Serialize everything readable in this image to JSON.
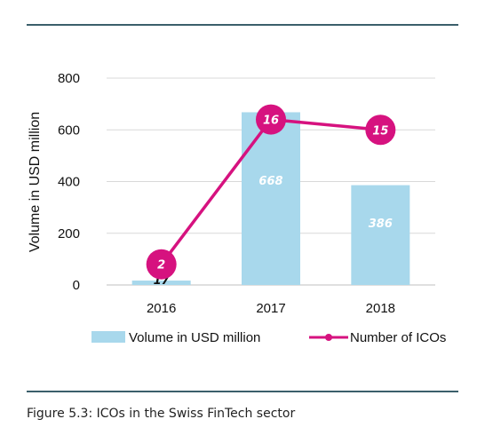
{
  "caption": "Figure 5.3: ICOs in the Swiss FinTech sector",
  "colors": {
    "bar": "#a8d8ec",
    "line": "#d6127f",
    "rule": "#3b5f6b",
    "grid": "#d9d9d9"
  },
  "chart_data": {
    "type": "bar",
    "categories": [
      "2016",
      "2017",
      "2018"
    ],
    "ylabel": "Volume in USD million",
    "ylim": [
      0,
      800
    ],
    "yticks": [
      "0",
      "200",
      "400",
      "600",
      "800"
    ],
    "grid": true,
    "legend_position": "bottom",
    "series": [
      {
        "name": "Volume in USD million",
        "type": "bar",
        "values": [
          17,
          668,
          386
        ],
        "labels": [
          "17",
          "668",
          "386"
        ]
      },
      {
        "name": "Number of ICOs",
        "type": "line",
        "values": [
          2,
          16,
          15
        ],
        "labels": [
          "2",
          "16",
          "15"
        ]
      }
    ]
  }
}
